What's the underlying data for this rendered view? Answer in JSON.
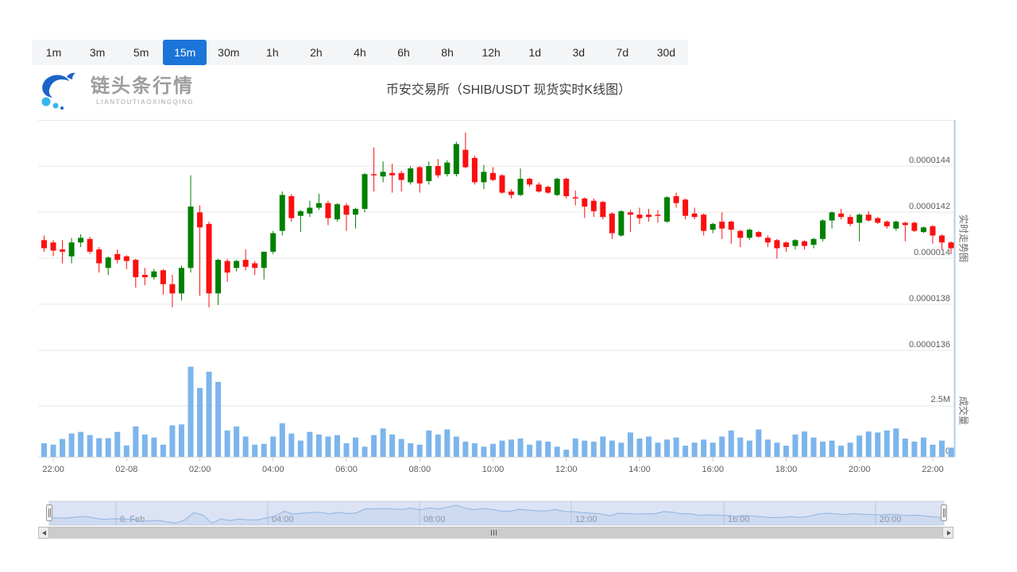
{
  "toolbar": {
    "intervals": [
      "1m",
      "3m",
      "5m",
      "15m",
      "30m",
      "1h",
      "2h",
      "4h",
      "6h",
      "8h",
      "12h",
      "1d",
      "3d",
      "7d",
      "30d"
    ],
    "active": "15m"
  },
  "header": {
    "logo_text": "链头条行情",
    "logo_subtext": "LIANTOUTIAOXINGQING",
    "title": "币安交易所（SHIB/USDT 现货实时K线图）"
  },
  "pane_labels": {
    "price_pane": "实时走势图",
    "volume_pane": "成交量"
  },
  "colors": {
    "up": "#008000",
    "down": "#fb0f0f",
    "volume_bar": "#7cb5ec",
    "active_tab_bg": "#1b74d8",
    "axis_line": "#b7cce8",
    "grid_line": "#e7e7e7",
    "axis_text": "#5c5c5c",
    "nav_fill": "#dbe3f4",
    "nav_line": "#8fb4e3",
    "logo_blue": "#1c63c8",
    "logo_light_blue": "#35b6f0"
  },
  "chart_data": {
    "type": "candlestick",
    "title": "币安交易所（SHIB/USDT 现货实时K线图）",
    "interval": "15m",
    "price_multiplier": 1e-07,
    "price_axis": {
      "tick_labels": [
        "0.0000144",
        "0.0000142",
        "0.000014",
        "0.0000138",
        "0.0000136"
      ],
      "tick_values_scaled": [
        144,
        142,
        140,
        138,
        136
      ]
    },
    "volume_axis": {
      "tick_labels": [
        "2.5M",
        "0"
      ],
      "tick_values_m": [
        2.5,
        0
      ]
    },
    "x_axis": {
      "tick_labels": [
        "22:00",
        "02-08",
        "02:00",
        "04:00",
        "06:00",
        "08:00",
        "10:00",
        "12:00",
        "14:00",
        "16:00",
        "18:00",
        "20:00",
        "22:00"
      ]
    },
    "candles_ohlc_scaled": [
      [
        140.8,
        141.0,
        140.3,
        140.45
      ],
      [
        140.7,
        140.8,
        140.1,
        140.35
      ],
      [
        140.4,
        140.8,
        139.8,
        140.3
      ],
      [
        140.1,
        140.9,
        139.8,
        140.7
      ],
      [
        140.7,
        141.05,
        140.5,
        140.9
      ],
      [
        140.85,
        140.95,
        140.2,
        140.3
      ],
      [
        140.4,
        140.5,
        139.4,
        139.8
      ],
      [
        139.6,
        140.1,
        139.3,
        140.05
      ],
      [
        140.2,
        140.4,
        139.8,
        139.95
      ],
      [
        140.1,
        140.15,
        139.55,
        139.9
      ],
      [
        139.95,
        140.0,
        138.75,
        139.2
      ],
      [
        139.3,
        139.6,
        138.85,
        139.2
      ],
      [
        139.2,
        139.55,
        139.1,
        139.45
      ],
      [
        139.5,
        139.55,
        138.45,
        138.9
      ],
      [
        138.9,
        139.3,
        137.9,
        138.5
      ],
      [
        138.5,
        139.7,
        138.2,
        139.6
      ],
      [
        139.6,
        143.6,
        139.4,
        142.25
      ],
      [
        142.0,
        142.3,
        138.4,
        141.35
      ],
      [
        141.5,
        141.6,
        137.9,
        138.5
      ],
      [
        138.5,
        140.0,
        138.0,
        139.95
      ],
      [
        139.9,
        140.0,
        139.0,
        139.4
      ],
      [
        139.6,
        139.95,
        139.45,
        139.9
      ],
      [
        139.95,
        140.4,
        139.5,
        139.65
      ],
      [
        139.8,
        139.9,
        139.3,
        139.6
      ],
      [
        139.6,
        140.3,
        139.1,
        140.3
      ],
      [
        140.3,
        141.2,
        140.2,
        141.1
      ],
      [
        141.2,
        142.9,
        141.0,
        142.75
      ],
      [
        142.7,
        142.8,
        141.6,
        141.75
      ],
      [
        141.85,
        142.1,
        141.15,
        142.05
      ],
      [
        141.95,
        142.5,
        141.8,
        142.2
      ],
      [
        142.2,
        142.8,
        142.1,
        142.4
      ],
      [
        142.4,
        142.5,
        141.45,
        141.75
      ],
      [
        141.7,
        142.4,
        141.6,
        142.35
      ],
      [
        142.3,
        142.4,
        141.2,
        141.9
      ],
      [
        141.9,
        142.2,
        141.3,
        142.15
      ],
      [
        142.15,
        143.7,
        142.0,
        143.65
      ],
      [
        143.65,
        144.8,
        142.9,
        143.6
      ],
      [
        143.55,
        144.2,
        143.3,
        143.75
      ],
      [
        143.7,
        144.1,
        142.85,
        143.6
      ],
      [
        143.7,
        143.8,
        142.9,
        143.4
      ],
      [
        143.3,
        144.0,
        143.2,
        143.9
      ],
      [
        143.95,
        144.0,
        142.85,
        143.25
      ],
      [
        143.35,
        144.2,
        143.2,
        144.0
      ],
      [
        144.0,
        144.3,
        143.5,
        143.6
      ],
      [
        143.65,
        144.25,
        143.55,
        144.15
      ],
      [
        143.65,
        145.05,
        143.55,
        144.95
      ],
      [
        144.7,
        145.45,
        143.9,
        143.95
      ],
      [
        144.35,
        144.45,
        143.2,
        143.3
      ],
      [
        143.3,
        144.05,
        143.0,
        143.75
      ],
      [
        143.7,
        143.95,
        143.35,
        143.4
      ],
      [
        143.6,
        143.65,
        142.8,
        142.85
      ],
      [
        142.9,
        143.0,
        142.6,
        142.75
      ],
      [
        142.75,
        143.9,
        142.7,
        143.45
      ],
      [
        143.45,
        143.5,
        143.1,
        143.2
      ],
      [
        143.2,
        143.3,
        142.85,
        142.9
      ],
      [
        143.1,
        143.15,
        142.8,
        142.85
      ],
      [
        142.75,
        143.5,
        142.7,
        143.45
      ],
      [
        143.45,
        143.5,
        142.6,
        142.7
      ],
      [
        142.65,
        142.95,
        142.3,
        142.6
      ],
      [
        142.6,
        142.65,
        141.75,
        142.25
      ],
      [
        142.5,
        142.6,
        141.8,
        142.05
      ],
      [
        142.45,
        142.5,
        141.7,
        141.8
      ],
      [
        141.95,
        142.0,
        140.85,
        141.1
      ],
      [
        141.0,
        142.1,
        140.95,
        142.05
      ],
      [
        142.0,
        142.1,
        141.15,
        141.9
      ],
      [
        141.9,
        142.2,
        141.5,
        141.75
      ],
      [
        141.9,
        142.15,
        141.6,
        141.8
      ],
      [
        141.9,
        142.1,
        141.55,
        141.85
      ],
      [
        141.6,
        142.7,
        141.55,
        142.65
      ],
      [
        142.7,
        142.85,
        142.2,
        142.4
      ],
      [
        142.55,
        142.6,
        141.7,
        141.85
      ],
      [
        141.95,
        142.2,
        141.7,
        141.8
      ],
      [
        141.9,
        141.95,
        141.0,
        141.2
      ],
      [
        141.25,
        141.55,
        141.1,
        141.5
      ],
      [
        141.6,
        142.0,
        140.85,
        141.3
      ],
      [
        141.6,
        141.65,
        140.65,
        141.25
      ],
      [
        141.2,
        141.25,
        140.5,
        140.9
      ],
      [
        140.9,
        141.3,
        140.8,
        141.25
      ],
      [
        141.15,
        141.2,
        140.9,
        140.95
      ],
      [
        140.9,
        141.0,
        140.5,
        140.7
      ],
      [
        140.8,
        140.85,
        140.0,
        140.45
      ],
      [
        140.7,
        140.75,
        140.3,
        140.5
      ],
      [
        140.55,
        140.85,
        140.4,
        140.8
      ],
      [
        140.75,
        140.8,
        140.4,
        140.55
      ],
      [
        140.6,
        140.9,
        140.45,
        140.85
      ],
      [
        140.85,
        141.7,
        140.75,
        141.65
      ],
      [
        141.65,
        142.05,
        141.3,
        142.0
      ],
      [
        141.95,
        142.15,
        141.7,
        141.8
      ],
      [
        141.8,
        141.9,
        141.4,
        141.5
      ],
      [
        141.55,
        141.95,
        140.75,
        141.9
      ],
      [
        141.9,
        142.05,
        141.6,
        141.65
      ],
      [
        141.75,
        141.8,
        141.5,
        141.55
      ],
      [
        141.6,
        141.65,
        141.3,
        141.4
      ],
      [
        141.3,
        141.65,
        141.2,
        141.6
      ],
      [
        141.55,
        141.6,
        140.75,
        141.45
      ],
      [
        141.55,
        141.6,
        141.15,
        141.2
      ],
      [
        141.15,
        141.4,
        141.1,
        141.35
      ],
      [
        141.4,
        141.45,
        140.65,
        141.0
      ],
      [
        141.0,
        141.05,
        140.4,
        140.7
      ],
      [
        140.7,
        140.75,
        140.2,
        140.45
      ]
    ],
    "volumes_m": [
      0.67,
      0.6,
      0.88,
      1.15,
      1.23,
      1.07,
      0.92,
      0.92,
      1.23,
      0.56,
      1.5,
      1.1,
      0.95,
      0.6,
      1.55,
      1.6,
      4.45,
      3.4,
      4.2,
      3.7,
      1.3,
      1.5,
      1.0,
      0.6,
      0.64,
      1.0,
      1.66,
      1.15,
      0.8,
      1.23,
      1.1,
      1.0,
      1.07,
      0.67,
      0.95,
      0.5,
      1.07,
      1.4,
      1.1,
      0.88,
      0.67,
      0.6,
      1.3,
      1.1,
      1.35,
      1.0,
      0.75,
      0.67,
      0.5,
      0.64,
      0.8,
      0.85,
      0.9,
      0.6,
      0.8,
      0.75,
      0.5,
      0.35,
      0.9,
      0.8,
      0.75,
      1.0,
      0.8,
      0.7,
      1.2,
      0.9,
      1.0,
      0.7,
      0.85,
      0.95,
      0.55,
      0.7,
      0.85,
      0.7,
      1.0,
      1.3,
      0.95,
      0.8,
      1.35,
      0.85,
      0.7,
      0.55,
      1.1,
      1.25,
      0.95,
      0.75,
      0.8,
      0.55,
      0.7,
      1.05,
      1.25,
      1.2,
      1.3,
      1.4,
      0.9,
      0.75,
      0.95,
      0.6,
      0.8,
      0.45
    ],
    "navigator": {
      "labels": [
        "8. Feb",
        "04:00",
        "08:00",
        "12:00",
        "16:00",
        "20:00"
      ]
    }
  }
}
